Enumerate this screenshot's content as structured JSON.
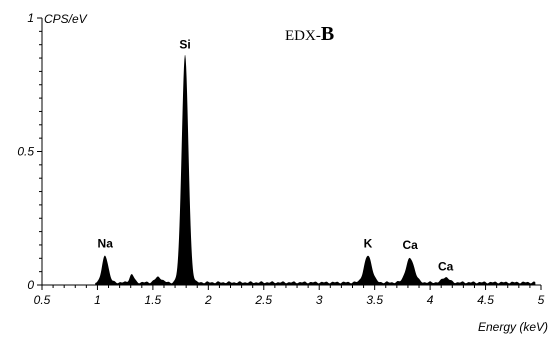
{
  "chart_data": {
    "type": "area",
    "title_prefix": "EDX-",
    "title_main": "B",
    "ylabel": "CPS/eV",
    "xlabel": "Energy (keV)",
    "xlim": [
      0.5,
      5
    ],
    "ylim": [
      0,
      1
    ],
    "x_ticks": [
      "0.5",
      "1",
      "1.5",
      "2",
      "2.5",
      "3",
      "3.5",
      "4",
      "4.5",
      "5"
    ],
    "y_ticks": [
      "0",
      "0.5",
      "1"
    ],
    "grid": false,
    "fill_color": "#000000",
    "baseline": 0.01,
    "peaks": [
      {
        "label": "Na",
        "energy": 1.07,
        "intensity": 0.1,
        "label_value": 0.14
      },
      {
        "label": "",
        "energy": 1.31,
        "intensity": 0.03
      },
      {
        "label": "",
        "energy": 1.55,
        "intensity": 0.02
      },
      {
        "label": "Si",
        "energy": 1.79,
        "intensity": 0.85,
        "label_value": 0.885
      },
      {
        "label": "K",
        "energy": 3.44,
        "intensity": 0.1,
        "label_value": 0.14
      },
      {
        "label": "Ca",
        "energy": 3.82,
        "intensity": 0.09,
        "label_value": 0.135
      },
      {
        "label": "Ca",
        "energy": 4.14,
        "intensity": 0.02,
        "label_value": 0.055
      }
    ]
  }
}
